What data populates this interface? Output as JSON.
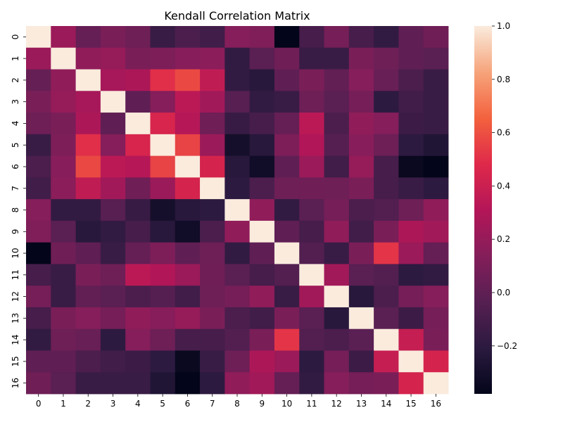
{
  "chart_data": {
    "type": "heatmap",
    "title": "Kendall Correlation Matrix",
    "x_labels": [
      "0",
      "1",
      "2",
      "3",
      "4",
      "5",
      "6",
      "7",
      "8",
      "9",
      "10",
      "11",
      "12",
      "13",
      "14",
      "15",
      "16"
    ],
    "y_labels": [
      "0",
      "1",
      "2",
      "3",
      "4",
      "5",
      "6",
      "7",
      "8",
      "9",
      "10",
      "11",
      "12",
      "13",
      "14",
      "15",
      "16"
    ],
    "colorbar": {
      "vmin": -0.38,
      "vmax": 1.0,
      "ticks": [
        1.0,
        0.8,
        0.6,
        0.4,
        0.2,
        0.0,
        -0.2
      ],
      "tick_labels": [
        "1.0",
        "0.8",
        "0.6",
        "0.4",
        "0.2",
        "0.0",
        "−0.2"
      ]
    },
    "values": [
      [
        1.0,
        0.22,
        0.02,
        0.1,
        0.05,
        -0.15,
        -0.08,
        -0.12,
        0.14,
        0.12,
        -0.38,
        -0.1,
        0.08,
        -0.1,
        -0.18,
        0.0,
        0.06
      ],
      [
        0.22,
        1.0,
        0.18,
        0.2,
        0.1,
        0.11,
        0.15,
        0.16,
        -0.18,
        -0.02,
        0.06,
        -0.15,
        -0.15,
        0.1,
        0.05,
        0.0,
        -0.02
      ],
      [
        0.02,
        0.18,
        1.0,
        0.26,
        0.28,
        0.5,
        0.58,
        0.36,
        -0.18,
        -0.22,
        0.0,
        0.1,
        0.01,
        0.14,
        0.03,
        -0.08,
        -0.15
      ],
      [
        0.1,
        0.2,
        0.26,
        1.0,
        0.0,
        0.14,
        0.34,
        0.24,
        -0.03,
        -0.18,
        -0.15,
        0.05,
        -0.02,
        0.08,
        -0.2,
        -0.12,
        -0.15
      ],
      [
        0.05,
        0.1,
        0.28,
        0.0,
        1.0,
        0.45,
        0.32,
        0.06,
        -0.16,
        -0.1,
        0.02,
        0.34,
        -0.08,
        0.18,
        0.14,
        -0.14,
        -0.15
      ],
      [
        -0.15,
        0.11,
        0.5,
        0.14,
        0.45,
        1.0,
        0.56,
        0.22,
        -0.3,
        -0.22,
        0.11,
        0.3,
        -0.04,
        0.15,
        0.05,
        -0.2,
        -0.25
      ],
      [
        -0.08,
        0.15,
        0.58,
        0.34,
        0.32,
        0.56,
        1.0,
        0.44,
        -0.22,
        -0.32,
        0.0,
        0.22,
        -0.12,
        0.2,
        -0.1,
        -0.35,
        -0.38
      ],
      [
        -0.12,
        0.16,
        0.36,
        0.24,
        0.06,
        0.22,
        0.44,
        1.0,
        -0.2,
        -0.08,
        0.05,
        0.06,
        0.05,
        0.1,
        -0.1,
        -0.15,
        -0.2
      ],
      [
        0.14,
        -0.18,
        -0.18,
        -0.03,
        -0.16,
        -0.3,
        -0.22,
        -0.2,
        1.0,
        0.18,
        -0.18,
        -0.02,
        0.08,
        -0.08,
        -0.05,
        0.05,
        0.18
      ],
      [
        0.12,
        -0.02,
        -0.22,
        -0.18,
        -0.1,
        -0.22,
        -0.32,
        -0.08,
        0.18,
        1.0,
        0.0,
        -0.1,
        0.18,
        -0.12,
        0.1,
        0.28,
        0.24
      ],
      [
        -0.38,
        0.06,
        0.0,
        -0.15,
        0.02,
        0.11,
        0.0,
        0.05,
        -0.18,
        0.0,
        1.0,
        -0.05,
        -0.15,
        0.1,
        0.52,
        0.22,
        0.02
      ],
      [
        -0.1,
        -0.15,
        0.1,
        0.05,
        0.34,
        0.3,
        0.22,
        0.06,
        -0.02,
        -0.1,
        -0.05,
        1.0,
        0.24,
        -0.02,
        -0.05,
        -0.2,
        -0.18
      ],
      [
        0.08,
        -0.15,
        0.01,
        -0.02,
        -0.08,
        -0.04,
        -0.12,
        0.05,
        0.08,
        0.18,
        -0.15,
        0.24,
        1.0,
        -0.22,
        -0.08,
        0.08,
        0.14
      ],
      [
        -0.1,
        0.1,
        0.14,
        0.08,
        0.18,
        0.15,
        0.2,
        0.1,
        -0.08,
        -0.12,
        0.1,
        -0.02,
        -0.22,
        1.0,
        -0.02,
        -0.14,
        0.08
      ],
      [
        -0.18,
        0.05,
        0.03,
        -0.2,
        0.14,
        0.05,
        -0.1,
        -0.1,
        -0.05,
        0.1,
        0.52,
        -0.05,
        -0.08,
        -0.02,
        1.0,
        0.38,
        0.1
      ],
      [
        0.0,
        0.0,
        -0.08,
        -0.12,
        -0.14,
        -0.2,
        -0.35,
        -0.15,
        0.05,
        0.28,
        0.22,
        -0.2,
        0.08,
        -0.14,
        0.38,
        1.0,
        0.44
      ],
      [
        0.06,
        -0.02,
        -0.15,
        -0.15,
        -0.15,
        -0.25,
        -0.38,
        -0.2,
        0.18,
        0.24,
        0.02,
        -0.18,
        0.14,
        0.08,
        0.1,
        0.44,
        1.0
      ]
    ]
  }
}
